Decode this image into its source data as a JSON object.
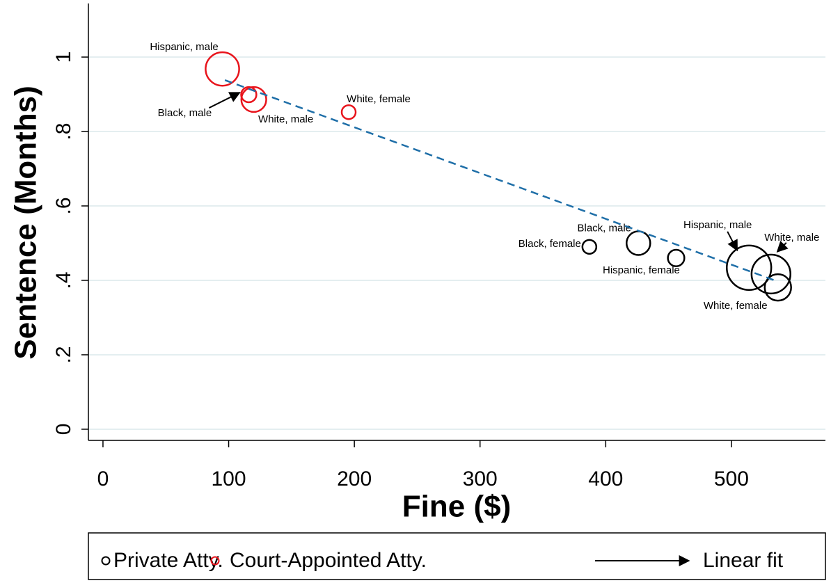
{
  "chart_data": {
    "type": "scatter",
    "x_label": "Fine ($)",
    "y_label": "Sentence (Months)",
    "xlim": [
      -11.6,
      574.8
    ],
    "ylim": [
      -0.03,
      1.144
    ],
    "xticks": [
      0,
      100,
      200,
      300,
      400,
      500
    ],
    "yticks": [
      0,
      {
        "value": 0.2,
        "label": ".2"
      },
      {
        "value": 0.4,
        "label": ".4"
      },
      {
        "value": 0.6,
        "label": ".6"
      },
      {
        "value": 0.8,
        "label": ".8"
      },
      1
    ],
    "grid": true,
    "legend": "bottom",
    "series": [
      {
        "name": "Private Atty.",
        "color": "#000000",
        "x": [
          387,
          426,
          456,
          514,
          531.5,
          537
        ],
        "values": [
          0.49,
          0.5,
          0.46,
          0.434,
          0.417,
          0.381
        ],
        "sizes": [
          1.0,
          2.9,
          1.4,
          10.2,
          7.8,
          3.6
        ],
        "labels": [
          "Black, female",
          "Black, male",
          "Hispanic, female",
          "Hispanic, male",
          "White, male",
          "White, female"
        ]
      },
      {
        "name": "Court-Appointed Atty.",
        "color": "#e8141c",
        "x": [
          95,
          116,
          120,
          195.5
        ],
        "values": [
          0.968,
          0.899,
          0.886,
          0.852
        ],
        "sizes": [
          5.8,
          1.2,
          3.2,
          1.0
        ],
        "labels": [
          "Hispanic, male",
          "Black, male",
          "White, male",
          "White, female"
        ]
      },
      {
        "name": "Linear fit",
        "type": "line",
        "color": "#1f6fa8",
        "x": [
          97,
          536
        ],
        "values": [
          0.938,
          0.398
        ]
      }
    ]
  }
}
